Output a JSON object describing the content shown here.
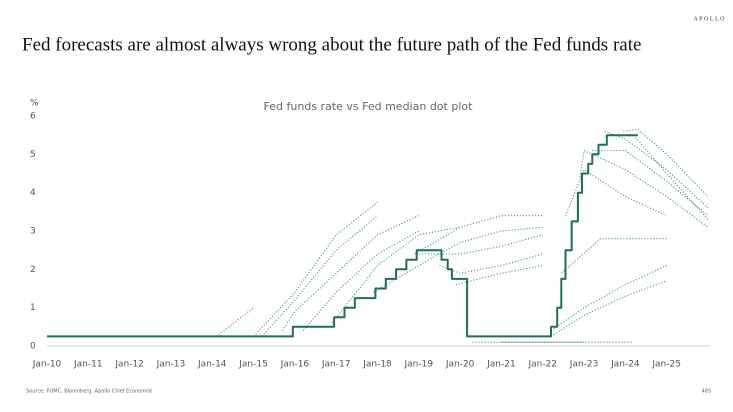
{
  "brand": "APOLLO",
  "chart_data": {
    "type": "line",
    "title": "Fed forecasts are almost always wrong about the future path of the Fed funds rate",
    "subtitle": "Fed funds rate vs Fed median dot plot",
    "y_label": "%",
    "source": "Source: FOMC, Bloomberg, Apollo Chief Economist",
    "page_number": "485",
    "xlim": [
      2010,
      2026
    ],
    "ylim": [
      0,
      6
    ],
    "xticks": [
      {
        "value": 2010,
        "label": "Jan-10"
      },
      {
        "value": 2011,
        "label": "Jan-11"
      },
      {
        "value": 2012,
        "label": "Jan-12"
      },
      {
        "value": 2013,
        "label": "Jan-13"
      },
      {
        "value": 2014,
        "label": "Jan-14"
      },
      {
        "value": 2015,
        "label": "Jan-15"
      },
      {
        "value": 2016,
        "label": "Jan-16"
      },
      {
        "value": 2017,
        "label": "Jan-17"
      },
      {
        "value": 2018,
        "label": "Jan-18"
      },
      {
        "value": 2019,
        "label": "Jan-19"
      },
      {
        "value": 2020,
        "label": "Jan-20"
      },
      {
        "value": 2021,
        "label": "Jan-21"
      },
      {
        "value": 2022,
        "label": "Jan-22"
      },
      {
        "value": 2023,
        "label": "Jan-23"
      },
      {
        "value": 2024,
        "label": "Jan-24"
      },
      {
        "value": 2025,
        "label": "Jan-25"
      }
    ],
    "yticks": [
      0,
      1,
      2,
      3,
      4,
      5,
      6
    ],
    "grid": false,
    "series": [
      {
        "color": "#4f9a80",
        "style": "dotted",
        "x": [
          2014.1,
          2015.0
        ],
        "values": [
          0.25,
          1.0
        ]
      },
      {
        "color": "#4f9a80",
        "style": "dotted",
        "x": [
          2015.0,
          2016.0,
          2017.0,
          2018.0
        ],
        "values": [
          0.25,
          1.4,
          2.9,
          3.75
        ]
      },
      {
        "color": "#4f9a80",
        "style": "dotted",
        "x": [
          2015.2,
          2016.0,
          2017.0,
          2018.0
        ],
        "values": [
          0.25,
          1.2,
          2.5,
          3.4
        ]
      },
      {
        "color": "#4f9a80",
        "style": "dotted",
        "x": [
          2015.7,
          2016.0,
          2017.0,
          2018.0,
          2019.0
        ],
        "values": [
          0.4,
          0.9,
          1.9,
          2.9,
          3.4
        ]
      },
      {
        "color": "#4f9a80",
        "style": "dotted",
        "x": [
          2016.2,
          2017.0,
          2018.0,
          2019.0
        ],
        "values": [
          0.4,
          1.4,
          2.4,
          3.0
        ]
      },
      {
        "color": "#4f9a80",
        "style": "dotted",
        "x": [
          2016.9,
          2018.0,
          2019.0,
          2020.0
        ],
        "values": [
          0.6,
          2.1,
          2.9,
          3.1
        ]
      },
      {
        "color": "#4f9a80",
        "style": "dotted",
        "x": [
          2017.9,
          2019.0,
          2020.0,
          2021.0,
          2022.0
        ],
        "values": [
          1.4,
          2.1,
          2.7,
          3.0,
          3.1
        ]
      },
      {
        "color": "#4f9a80",
        "style": "dotted",
        "x": [
          2018.9,
          2020.0,
          2021.0,
          2022.0
        ],
        "values": [
          2.4,
          3.1,
          3.4,
          3.4
        ]
      },
      {
        "color": "#4f9a80",
        "style": "dotted",
        "x": [
          2019.0,
          2020.0,
          2021.0,
          2022.0
        ],
        "values": [
          2.4,
          2.4,
          2.6,
          2.9
        ]
      },
      {
        "color": "#4f9a80",
        "style": "dotted",
        "x": [
          2019.5,
          2020.0,
          2021.0,
          2022.0
        ],
        "values": [
          2.1,
          1.9,
          2.1,
          2.4
        ]
      },
      {
        "color": "#4f9a80",
        "style": "dotted",
        "x": [
          2019.9,
          2021.0,
          2022.0
        ],
        "values": [
          1.6,
          1.9,
          2.1
        ]
      },
      {
        "color": "#4f9a80",
        "style": "dotted",
        "x": [
          2020.3,
          2021.0,
          2022.0,
          2023.0
        ],
        "values": [
          0.1,
          0.1,
          0.1,
          0.1
        ]
      },
      {
        "color": "#4f9a80",
        "style": "dotted",
        "x": [
          2021.0,
          2022.0,
          2023.0,
          2024.2
        ],
        "values": [
          0.1,
          0.1,
          0.1,
          0.1
        ]
      },
      {
        "color": "#4f9a80",
        "style": "dotted",
        "x": [
          2022.2,
          2023.0,
          2024.0,
          2025.0
        ],
        "values": [
          0.4,
          1.0,
          1.6,
          2.1
        ]
      },
      {
        "color": "#4f9a80",
        "style": "dotted",
        "x": [
          2022.2,
          2023.0,
          2024.0,
          2025.0
        ],
        "values": [
          0.25,
          0.8,
          1.3,
          1.7
        ]
      },
      {
        "color": "#4f9a80",
        "style": "dotted",
        "x": [
          2022.45,
          2023.4,
          2024.0,
          2025.0
        ],
        "values": [
          1.9,
          2.8,
          2.8,
          2.8
        ]
      },
      {
        "color": "#4f9a80",
        "style": "dotted",
        "x": [
          2022.55,
          2023.0,
          2024.0,
          2025.0
        ],
        "values": [
          3.4,
          4.6,
          3.9,
          3.4
        ]
      },
      {
        "color": "#4f9a80",
        "style": "dotted",
        "x": [
          2022.9,
          2023.0,
          2024.0,
          2025.0,
          2026.0
        ],
        "values": [
          4.4,
          5.1,
          4.6,
          3.9,
          3.1
        ]
      },
      {
        "color": "#4f9a80",
        "style": "dotted",
        "x": [
          2023.2,
          2024.0,
          2025.0,
          2026.0
        ],
        "values": [
          5.1,
          5.1,
          4.3,
          3.4
        ]
      },
      {
        "color": "#4f9a80",
        "style": "dotted",
        "x": [
          2023.5,
          2024.0,
          2025.0,
          2026.0
        ],
        "values": [
          5.6,
          5.4,
          4.6,
          3.6
        ]
      },
      {
        "color": "#4f9a80",
        "style": "dotted",
        "x": [
          2023.95,
          2024.3,
          2025.0,
          2026.0
        ],
        "values": [
          5.6,
          5.65,
          5.0,
          3.9
        ]
      },
      {
        "color": "#4f9a80",
        "style": "dotted",
        "x": [
          2024.2,
          2025.0,
          2026.0
        ],
        "values": [
          5.5,
          4.5,
          3.3
        ]
      },
      {
        "color": "#1f6e57",
        "style": "solid",
        "x": [
          2010,
          2015.95,
          2015.95,
          2016.95,
          2016.95,
          2017.2,
          2017.2,
          2017.45,
          2017.45,
          2017.95,
          2017.95,
          2018.2,
          2018.2,
          2018.45,
          2018.45,
          2018.7,
          2018.7,
          2018.95,
          2018.95,
          2019.55,
          2019.55,
          2019.7,
          2019.7,
          2019.8,
          2019.8,
          2020.17,
          2020.17,
          2022.2,
          2022.2,
          2022.35,
          2022.35,
          2022.45,
          2022.45,
          2022.55,
          2022.55,
          2022.7,
          2022.7,
          2022.85,
          2022.85,
          2022.95,
          2022.95,
          2023.1,
          2023.1,
          2023.2,
          2023.2,
          2023.35,
          2023.35,
          2023.55,
          2023.55,
          2024.3
        ],
        "values": [
          0.25,
          0.25,
          0.5,
          0.5,
          0.75,
          0.75,
          1.0,
          1.0,
          1.25,
          1.25,
          1.5,
          1.5,
          1.75,
          1.75,
          2.0,
          2.0,
          2.25,
          2.25,
          2.5,
          2.5,
          2.25,
          2.25,
          2.0,
          2.0,
          1.75,
          1.75,
          0.25,
          0.25,
          0.5,
          0.5,
          1.0,
          1.0,
          1.75,
          1.75,
          2.5,
          2.5,
          3.25,
          3.25,
          4.0,
          4.0,
          4.5,
          4.5,
          4.75,
          4.75,
          5.0,
          5.0,
          5.25,
          5.25,
          5.5,
          5.5
        ]
      }
    ]
  }
}
